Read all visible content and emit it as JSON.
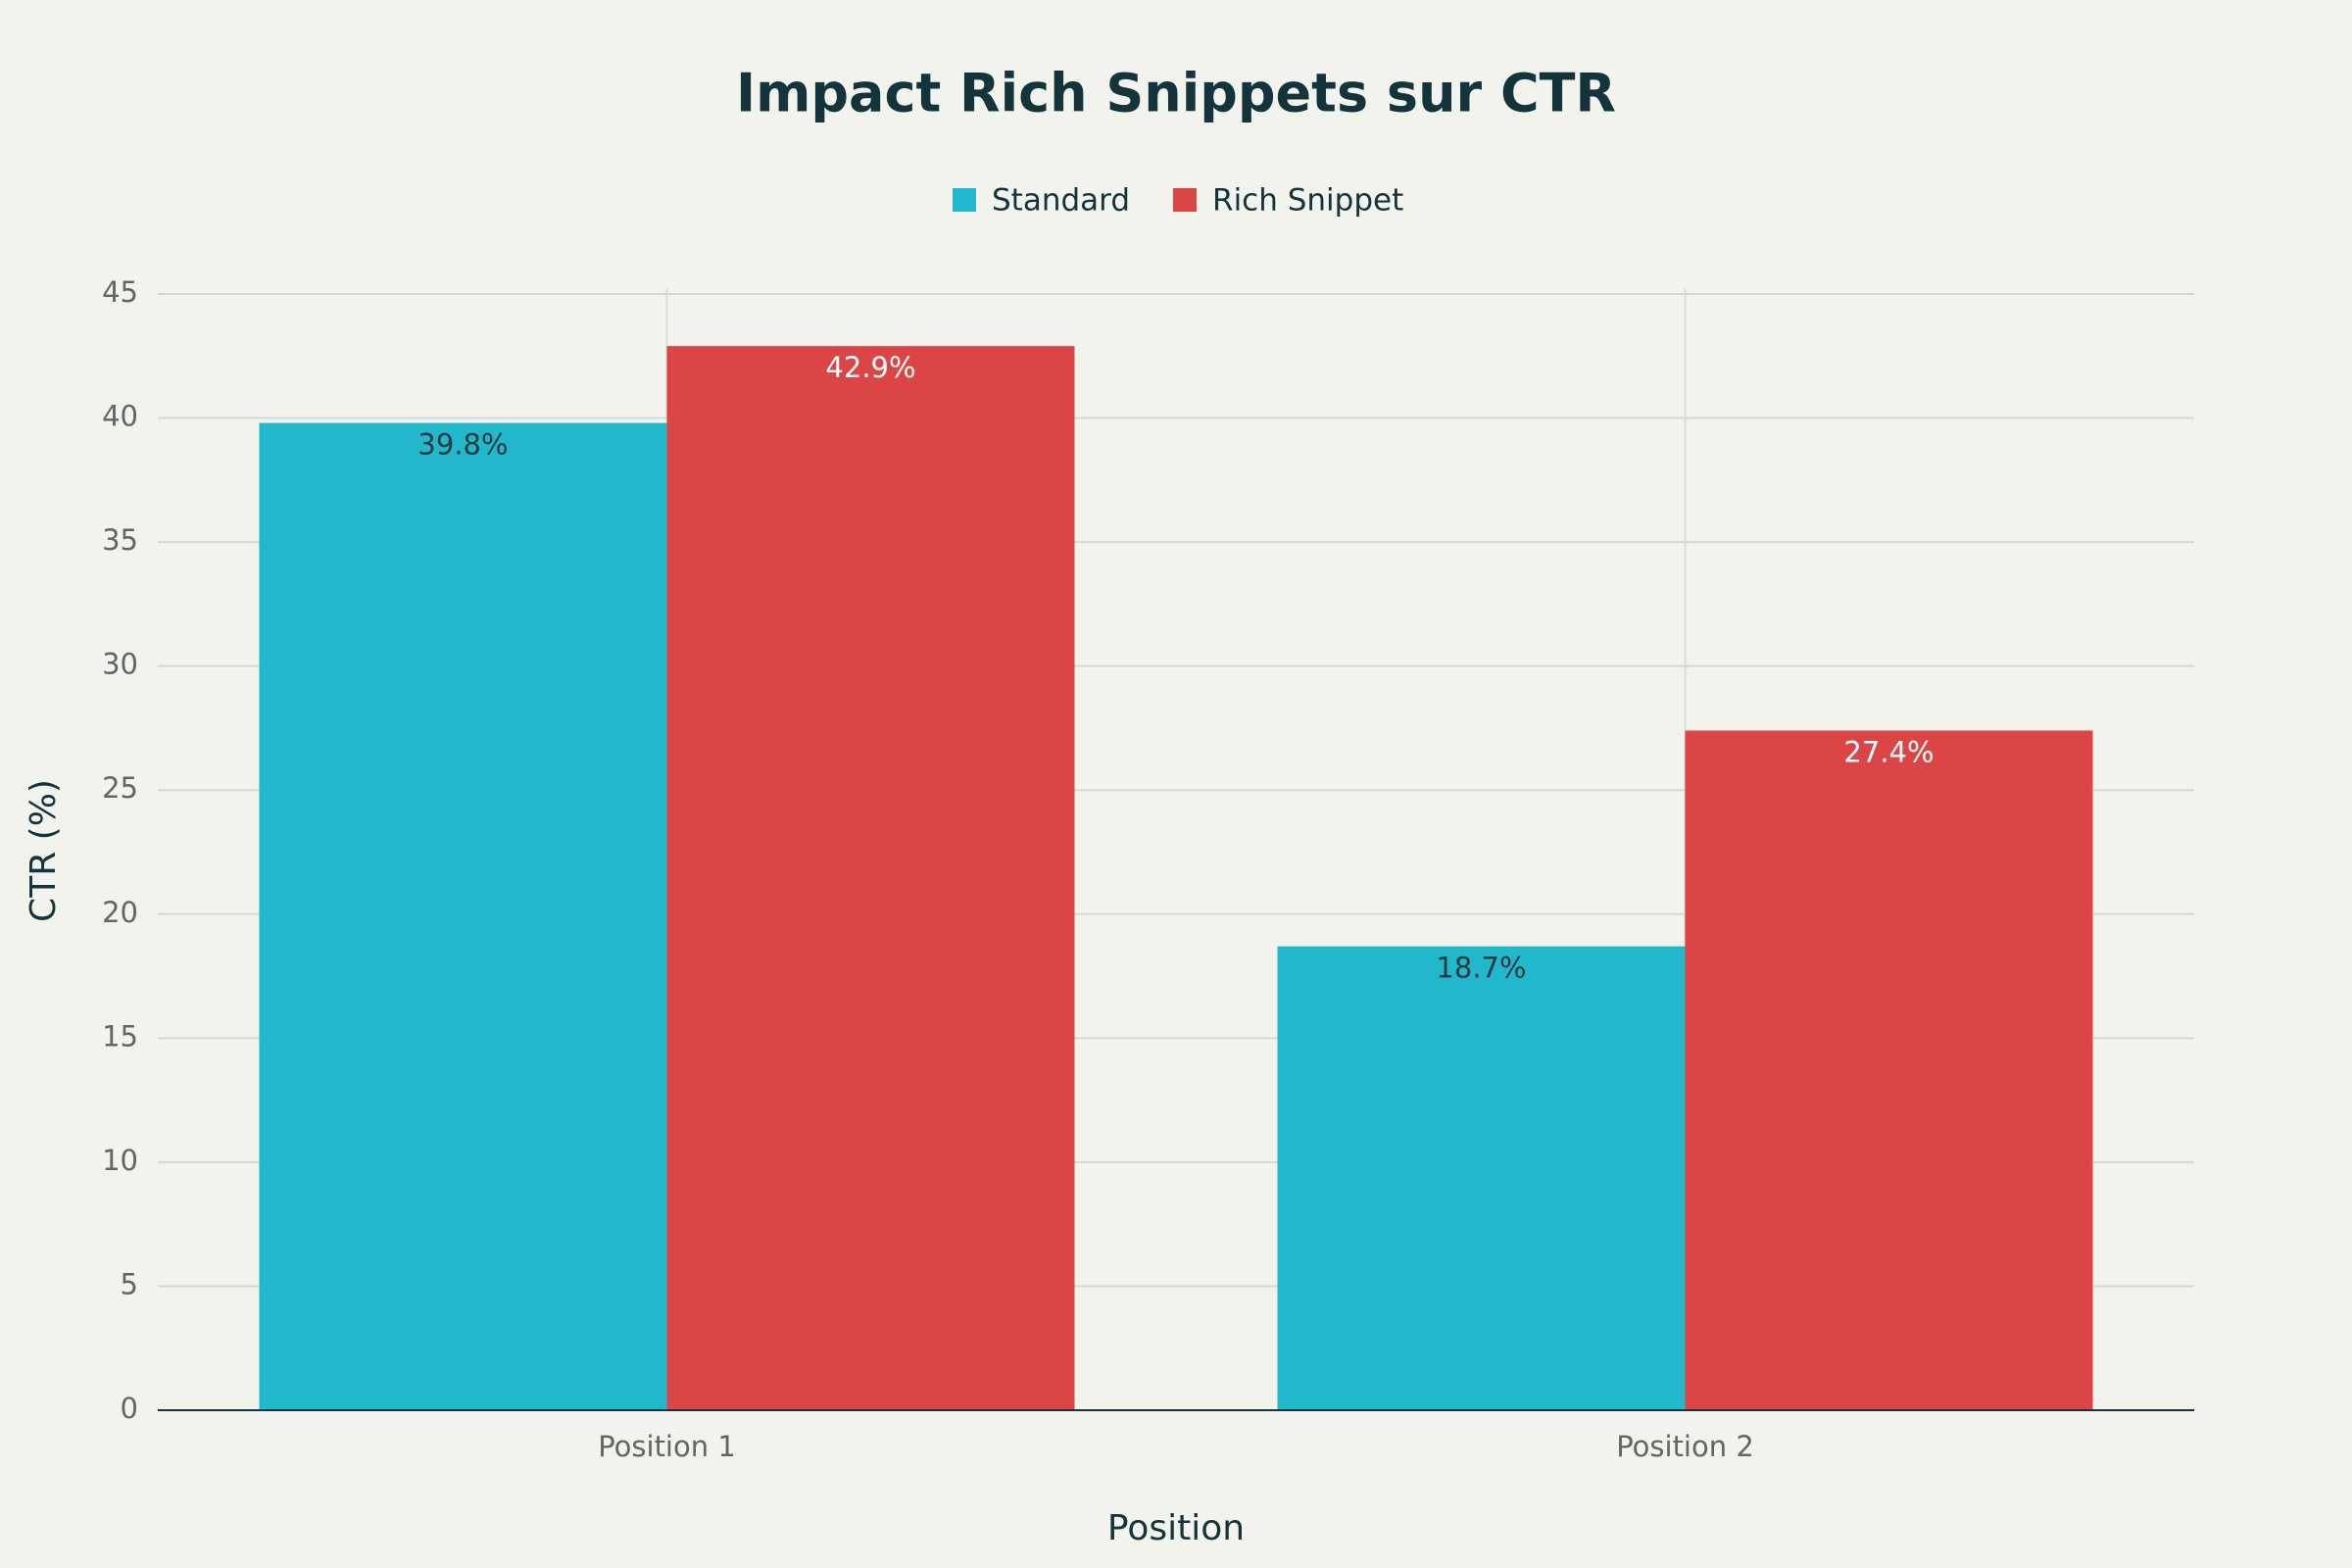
{
  "chart_data": {
    "type": "bar",
    "title": "Impact Rich Snippets sur CTR",
    "x_label": "Position",
    "y_label": "CTR (%)",
    "categories": [
      "Position 1",
      "Position 2"
    ],
    "series": [
      {
        "name": "Standard",
        "color": "#21b8cd",
        "values": [
          39.8,
          18.7
        ],
        "value_labels": [
          "39.8%",
          "18.7%"
        ]
      },
      {
        "name": "Rich Snippet",
        "color": "#db4546",
        "values": [
          42.9,
          27.4
        ],
        "value_labels": [
          "42.9%",
          "27.4%"
        ]
      }
    ],
    "ylim": [
      0,
      45
    ],
    "yticks": [
      0,
      5,
      10,
      15,
      20,
      25,
      30,
      35,
      40,
      45
    ],
    "grid": true
  }
}
